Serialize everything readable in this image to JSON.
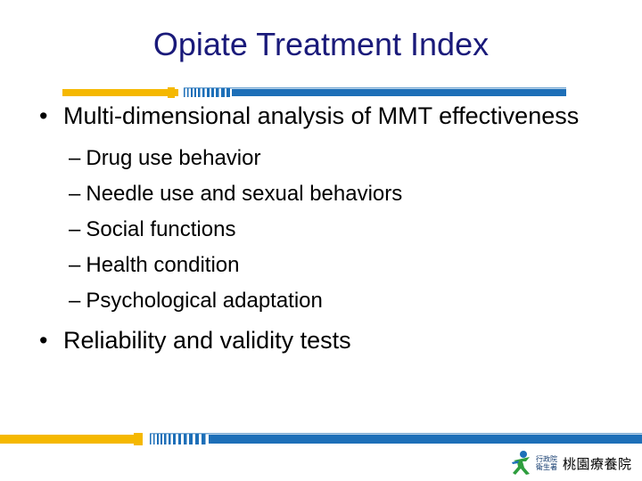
{
  "slide": {
    "title": "Opiate Treatment Index",
    "bullets": [
      {
        "marker": "•",
        "text": "Multi-dimensional analysis of MMT effectiveness",
        "subitems": [
          {
            "marker": "–",
            "text": "Drug use behavior"
          },
          {
            "marker": "–",
            "text": "Needle use and sexual behaviors"
          },
          {
            "marker": "–",
            "text": "Social functions"
          },
          {
            "marker": "–",
            "text": "Health condition"
          },
          {
            "marker": "–",
            "text": "Psychological adaptation"
          }
        ]
      },
      {
        "marker": "•",
        "text": "Reliability and validity tests",
        "subitems": []
      }
    ]
  },
  "footer": {
    "logo_small_line1": "行政院",
    "logo_small_line2": "衛生署",
    "logo_main": "桃園療養院"
  },
  "colors": {
    "title": "#1a1a7a",
    "accent_orange": "#f5b800",
    "accent_blue": "#1d6fb8"
  },
  "icons": [
    "figure-logo-icon"
  ]
}
